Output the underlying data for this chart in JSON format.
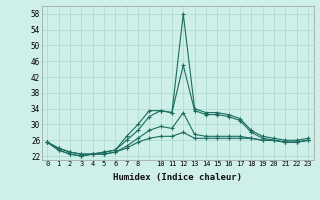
{
  "xlabel": "Humidex (Indice chaleur)",
  "bg_color": "#cef0e8",
  "grid_color": "#aad8cc",
  "line_color": "#1a6b60",
  "ylim": [
    21,
    60
  ],
  "yticks": [
    22,
    26,
    30,
    34,
    38,
    42,
    46,
    50,
    54,
    58
  ],
  "x_positions": [
    0,
    1,
    2,
    3,
    4,
    5,
    6,
    7,
    8,
    9,
    10,
    11,
    12,
    13,
    14,
    15,
    16,
    17,
    18,
    19,
    20,
    21,
    22,
    23
  ],
  "x_tick_labels": [
    "0",
    "1",
    "2",
    "3",
    "4",
    "5",
    "6",
    "7",
    "8",
    "",
    "10",
    "11",
    "12",
    "13",
    "14",
    "15",
    "16",
    "17",
    "18",
    "19",
    "20",
    "21",
    "22",
    "23"
  ],
  "series": [
    [
      25.5,
      24.0,
      23.0,
      22.5,
      22.5,
      23.0,
      23.5,
      27.0,
      30.0,
      33.5,
      33.5,
      33.0,
      58.0,
      34.0,
      33.0,
      33.0,
      32.5,
      31.5,
      28.5,
      27.0,
      26.5,
      26.0,
      26.0,
      26.5
    ],
    [
      25.5,
      24.0,
      23.0,
      22.5,
      22.5,
      23.0,
      23.5,
      26.0,
      28.5,
      32.0,
      33.5,
      33.0,
      45.0,
      33.5,
      32.5,
      32.5,
      32.0,
      31.0,
      28.0,
      26.5,
      26.0,
      25.5,
      25.5,
      26.0
    ],
    [
      25.5,
      23.5,
      22.5,
      22.0,
      22.5,
      22.5,
      23.0,
      24.5,
      26.5,
      28.5,
      29.5,
      29.0,
      33.0,
      27.5,
      27.0,
      27.0,
      27.0,
      27.0,
      26.5,
      26.0,
      26.0,
      25.5,
      25.5,
      26.0
    ],
    [
      25.5,
      23.5,
      22.5,
      22.0,
      22.5,
      22.5,
      23.0,
      24.0,
      25.5,
      26.5,
      27.0,
      27.0,
      28.0,
      26.5,
      26.5,
      26.5,
      26.5,
      26.5,
      26.5,
      26.0,
      26.0,
      25.5,
      25.5,
      26.0
    ]
  ]
}
